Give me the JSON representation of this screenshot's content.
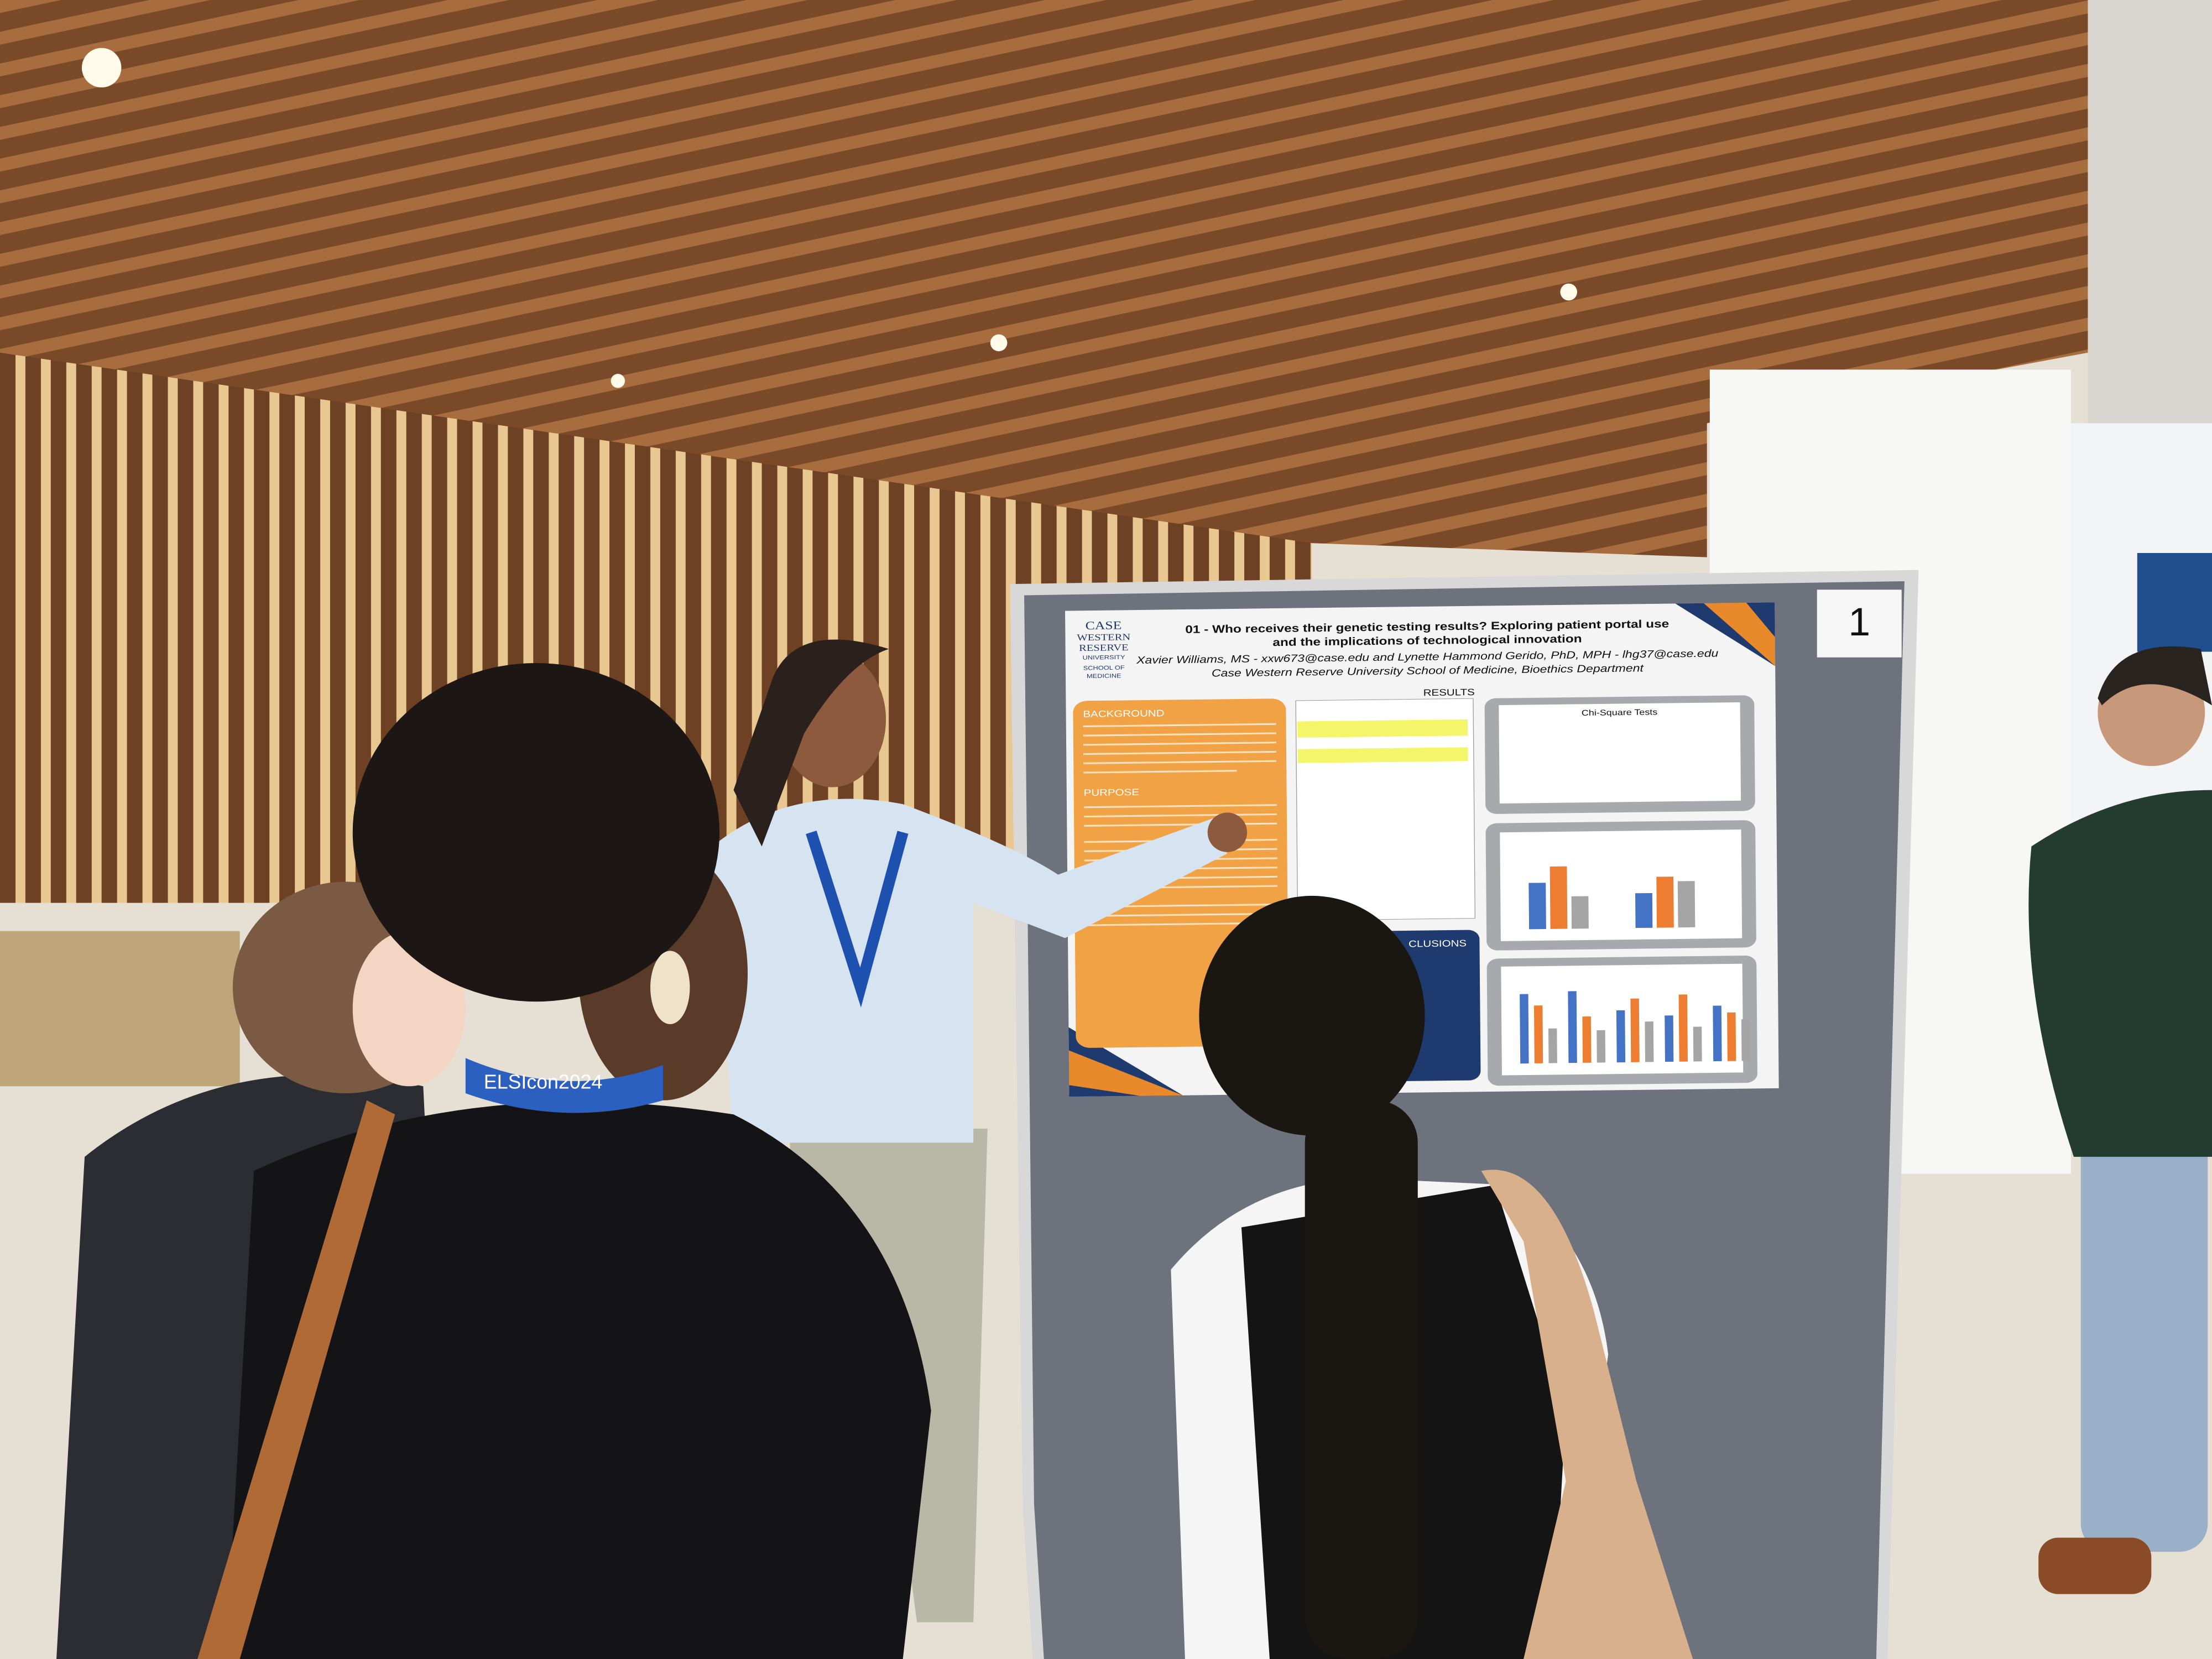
{
  "poster": {
    "number": "1",
    "logo": [
      "CASE",
      "WESTERN",
      "RESERVE",
      "UNIVERSITY",
      "SCHOOL OF",
      "MEDICINE"
    ],
    "title": [
      "01 - Who receives their genetic testing results? Exploring patient portal use",
      "and the implications of technological innovation"
    ],
    "authors": "Xavier Williams, MS - xxw673@case.edu and Lynette Hammond Gerido, PhD, MPH - lhg37@case.edu",
    "affiliation": "Case Western Reserve University School of Medicine, Bioethics Department",
    "sections": {
      "results": "RESULTS",
      "background": "BACKGROUND",
      "purpose": "PURPOSE",
      "conclusions": "CLUSIONS"
    },
    "table_title": "Chi-Square Tests"
  },
  "badge": "ELSIcon2024"
}
